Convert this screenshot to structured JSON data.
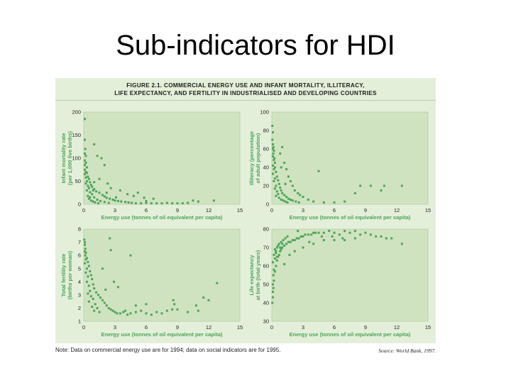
{
  "slide": {
    "title": "Sub-indicators for HDI"
  },
  "figure": {
    "title_line1": "FIGURE 2.1. COMMERCIAL ENERGY USE AND INFANT MORTALITY, ILLITERACY,",
    "title_line2": "LIFE EXPECTANCY, AND FERTILITY IN INDUSTRIALISED AND DEVELOPING COUNTRIES",
    "note": "Note: Data on commercial energy use are for 1994; data on social indicators are for 1995.",
    "source": "Source: World Bank, 1997."
  },
  "colors": {
    "panel_bg": "#e3efd9",
    "plot_bg": "#d0e3c0",
    "point": "#4aa55a",
    "axis_label": "#4aa55a"
  },
  "chart_data": [
    {
      "type": "scatter",
      "xlabel": "Energy use (tonnes of oil equivalent per capita)",
      "ylabel": [
        "Infant mortality rate",
        "(per 1,000 live births)"
      ],
      "xlim": [
        0,
        15
      ],
      "ylim": [
        0,
        200
      ],
      "xticks": [
        "0",
        "3",
        "6",
        "9",
        "12",
        "15"
      ],
      "yticks": [
        "0",
        "50",
        "100",
        "150",
        "200"
      ],
      "points": [
        [
          0.1,
          185
        ],
        [
          0.1,
          140
        ],
        [
          0.15,
          120
        ],
        [
          0.1,
          110
        ],
        [
          0.2,
          105
        ],
        [
          0.1,
          95
        ],
        [
          0.2,
          90
        ],
        [
          0.1,
          85
        ],
        [
          0.3,
          80
        ],
        [
          0.1,
          75
        ],
        [
          0.2,
          70
        ],
        [
          0.3,
          68
        ],
        [
          0.1,
          65
        ],
        [
          0.4,
          60
        ],
        [
          0.2,
          58
        ],
        [
          0.5,
          55
        ],
        [
          0.3,
          50
        ],
        [
          0.6,
          48
        ],
        [
          0.2,
          45
        ],
        [
          0.7,
          42
        ],
        [
          0.4,
          40
        ],
        [
          0.8,
          38
        ],
        [
          0.5,
          35
        ],
        [
          1.0,
          33
        ],
        [
          0.3,
          30
        ],
        [
          1.2,
          28
        ],
        [
          0.6,
          26
        ],
        [
          1.5,
          25
        ],
        [
          0.8,
          22
        ],
        [
          1.8,
          20
        ],
        [
          0.4,
          18
        ],
        [
          2.0,
          17
        ],
        [
          1.0,
          15
        ],
        [
          2.2,
          14
        ],
        [
          0.5,
          12
        ],
        [
          2.5,
          12
        ],
        [
          1.3,
          10
        ],
        [
          2.8,
          10
        ],
        [
          0.7,
          8
        ],
        [
          3.0,
          8
        ],
        [
          1.6,
          7
        ],
        [
          3.3,
          7
        ],
        [
          0.9,
          6
        ],
        [
          3.6,
          6
        ],
        [
          2.0,
          5
        ],
        [
          4.0,
          5
        ],
        [
          1.1,
          4
        ],
        [
          4.3,
          4
        ],
        [
          2.4,
          3
        ],
        [
          4.6,
          3
        ],
        [
          1.4,
          2
        ],
        [
          5.0,
          2
        ],
        [
          5.5,
          2
        ],
        [
          6.0,
          3
        ],
        [
          6.5,
          2
        ],
        [
          7.0,
          2
        ],
        [
          7.5,
          2
        ],
        [
          8.0,
          3
        ],
        [
          8.5,
          2
        ],
        [
          9.0,
          2
        ],
        [
          9.5,
          2
        ],
        [
          10.0,
          3
        ],
        [
          1.0,
          130
        ],
        [
          1.3,
          105
        ],
        [
          1.7,
          100
        ],
        [
          2.0,
          85
        ],
        [
          1.5,
          55
        ],
        [
          2.3,
          45
        ],
        [
          2.6,
          35
        ],
        [
          3.5,
          30
        ],
        [
          4.2,
          22
        ],
        [
          4.8,
          18
        ],
        [
          5.2,
          25
        ],
        [
          6.7,
          12
        ],
        [
          6.0,
          7
        ],
        [
          5.8,
          14
        ],
        [
          10.5,
          8
        ],
        [
          11.0,
          6
        ],
        [
          12.5,
          8
        ],
        [
          3.1,
          15
        ],
        [
          2.2,
          25
        ],
        [
          1.0,
          48
        ],
        [
          0.6,
          15
        ],
        [
          0.9,
          30
        ]
      ]
    },
    {
      "type": "scatter",
      "xlabel": "Energy use (tonnes of oil equivalent per capita)",
      "ylabel": [
        "Illiteracy (percentage",
        "of adult population)"
      ],
      "xlim": [
        0,
        15
      ],
      "ylim": [
        0,
        100
      ],
      "xticks": [
        "0",
        "3",
        "6",
        "9",
        "12",
        "15"
      ],
      "yticks": [
        "0",
        "20",
        "40",
        "60",
        "80",
        "100"
      ],
      "points": [
        [
          0.05,
          85
        ],
        [
          0.1,
          78
        ],
        [
          0.05,
          70
        ],
        [
          0.1,
          65
        ],
        [
          0.15,
          62
        ],
        [
          0.1,
          60
        ],
        [
          0.2,
          58
        ],
        [
          0.15,
          55
        ],
        [
          0.1,
          52
        ],
        [
          0.25,
          50
        ],
        [
          0.2,
          48
        ],
        [
          0.3,
          45
        ],
        [
          0.1,
          42
        ],
        [
          0.3,
          40
        ],
        [
          0.2,
          38
        ],
        [
          0.4,
          35
        ],
        [
          0.1,
          33
        ],
        [
          0.5,
          30
        ],
        [
          0.3,
          28
        ],
        [
          0.6,
          26
        ],
        [
          0.2,
          25
        ],
        [
          0.7,
          22
        ],
        [
          0.4,
          20
        ],
        [
          0.8,
          18
        ],
        [
          0.3,
          17
        ],
        [
          0.9,
          15
        ],
        [
          0.5,
          14
        ],
        [
          1.0,
          12
        ],
        [
          0.6,
          11
        ],
        [
          1.2,
          10
        ],
        [
          0.4,
          9
        ],
        [
          1.4,
          8
        ],
        [
          0.7,
          7
        ],
        [
          1.6,
          6
        ],
        [
          0.9,
          5
        ],
        [
          1.8,
          5
        ],
        [
          1.1,
          4
        ],
        [
          2.0,
          4
        ],
        [
          1.3,
          3
        ],
        [
          2.3,
          3
        ],
        [
          1.5,
          2
        ],
        [
          2.6,
          2
        ],
        [
          1.0,
          62
        ],
        [
          1.2,
          45
        ],
        [
          1.4,
          38
        ],
        [
          1.6,
          30
        ],
        [
          1.8,
          25
        ],
        [
          2.0,
          20
        ],
        [
          2.2,
          15
        ],
        [
          0.8,
          55
        ],
        [
          2.5,
          12
        ],
        [
          3.0,
          8
        ],
        [
          3.5,
          5
        ],
        [
          4.0,
          3
        ],
        [
          4.5,
          36
        ],
        [
          5.0,
          2
        ],
        [
          6.0,
          2
        ],
        [
          7.0,
          3
        ],
        [
          8.0,
          12
        ],
        [
          8.5,
          20
        ],
        [
          9.5,
          20
        ],
        [
          10.5,
          15
        ],
        [
          10.8,
          20
        ],
        [
          12.5,
          20
        ],
        [
          1.3,
          22
        ],
        [
          0.9,
          40
        ],
        [
          2.7,
          10
        ]
      ]
    },
    {
      "type": "scatter",
      "xlabel": "Energy use (tonnes of oil equivalent per capita)",
      "ylabel": [
        "Total fertility rate",
        "(births per woman)"
      ],
      "xlim": [
        0,
        15
      ],
      "ylim": [
        1,
        8
      ],
      "xticks": [
        "0",
        "3",
        "6",
        "9",
        "12",
        "15"
      ],
      "yticks": [
        "1",
        "2",
        "3",
        "4",
        "5",
        "6",
        "7",
        "8"
      ],
      "points": [
        [
          0.05,
          7.2
        ],
        [
          0.1,
          7.0
        ],
        [
          0.1,
          6.8
        ],
        [
          0.15,
          6.5
        ],
        [
          0.1,
          6.3
        ],
        [
          0.2,
          6.2
        ],
        [
          0.15,
          6.0
        ],
        [
          0.3,
          5.8
        ],
        [
          0.2,
          5.7
        ],
        [
          0.4,
          5.5
        ],
        [
          0.1,
          5.4
        ],
        [
          0.5,
          5.2
        ],
        [
          0.3,
          5.0
        ],
        [
          0.6,
          4.8
        ],
        [
          0.2,
          4.7
        ],
        [
          0.7,
          4.5
        ],
        [
          0.4,
          4.4
        ],
        [
          0.8,
          4.2
        ],
        [
          0.3,
          4.0
        ],
        [
          0.9,
          3.8
        ],
        [
          0.5,
          3.7
        ],
        [
          1.0,
          3.5
        ],
        [
          0.6,
          3.3
        ],
        [
          1.2,
          3.2
        ],
        [
          0.4,
          3.1
        ],
        [
          1.4,
          3.0
        ],
        [
          0.7,
          2.9
        ],
        [
          1.6,
          2.8
        ],
        [
          0.9,
          2.7
        ],
        [
          1.8,
          2.6
        ],
        [
          0.5,
          2.5
        ],
        [
          2.0,
          2.4
        ],
        [
          1.1,
          2.3
        ],
        [
          2.2,
          2.2
        ],
        [
          0.8,
          2.1
        ],
        [
          2.4,
          2.0
        ],
        [
          1.3,
          2.0
        ],
        [
          2.6,
          1.9
        ],
        [
          1.0,
          1.8
        ],
        [
          2.8,
          1.8
        ],
        [
          1.5,
          1.7
        ],
        [
          3.0,
          1.7
        ],
        [
          3.2,
          1.6
        ],
        [
          3.5,
          1.6
        ],
        [
          3.8,
          1.7
        ],
        [
          4.0,
          1.8
        ],
        [
          4.2,
          1.5
        ],
        [
          4.5,
          1.6
        ],
        [
          5.0,
          1.7
        ],
        [
          5.5,
          1.8
        ],
        [
          6.0,
          1.6
        ],
        [
          6.5,
          1.5
        ],
        [
          7.0,
          1.7
        ],
        [
          7.5,
          1.6
        ],
        [
          8.0,
          1.8
        ],
        [
          8.5,
          1.9
        ],
        [
          2.5,
          7.3
        ],
        [
          2.6,
          6.4
        ],
        [
          4.5,
          6.0
        ],
        [
          1.8,
          5.0
        ],
        [
          2.9,
          4.0
        ],
        [
          3.3,
          3.6
        ],
        [
          2.1,
          3.4
        ],
        [
          5.0,
          2.2
        ],
        [
          6.0,
          2.3
        ],
        [
          8.7,
          2.3
        ],
        [
          8.6,
          2.6
        ],
        [
          9.0,
          1.9
        ],
        [
          10.0,
          1.7
        ],
        [
          11.0,
          1.8
        ],
        [
          11.5,
          2.8
        ],
        [
          12.0,
          2.6
        ],
        [
          10.8,
          2.2
        ],
        [
          12.8,
          3.9
        ]
      ]
    },
    {
      "type": "scatter",
      "xlabel": "Energy use (tonnes of oil equivalent per capita)",
      "ylabel": [
        "Life expectancy",
        "at birth (total years)"
      ],
      "xlim": [
        0,
        15
      ],
      "ylim": [
        30,
        80
      ],
      "xticks": [
        "0",
        "3",
        "6",
        "9",
        "12",
        "15"
      ],
      "yticks": [
        "30",
        "40",
        "50",
        "60",
        "70",
        "80"
      ],
      "points": [
        [
          0.05,
          40
        ],
        [
          0.1,
          43
        ],
        [
          0.1,
          46
        ],
        [
          0.15,
          48
        ],
        [
          0.1,
          50
        ],
        [
          0.2,
          52
        ],
        [
          0.15,
          55
        ],
        [
          0.3,
          57
        ],
        [
          0.2,
          58
        ],
        [
          0.4,
          60
        ],
        [
          0.1,
          62
        ],
        [
          0.5,
          63
        ],
        [
          0.3,
          64
        ],
        [
          0.6,
          65
        ],
        [
          0.2,
          66
        ],
        [
          0.7,
          66
        ],
        [
          0.4,
          67
        ],
        [
          0.8,
          68
        ],
        [
          0.3,
          69
        ],
        [
          0.9,
          69
        ],
        [
          0.5,
          70
        ],
        [
          1.0,
          70
        ],
        [
          0.6,
          71
        ],
        [
          1.2,
          71
        ],
        [
          0.4,
          68
        ],
        [
          1.4,
          72
        ],
        [
          0.7,
          72
        ],
        [
          1.6,
          73
        ],
        [
          0.9,
          73
        ],
        [
          1.8,
          73
        ],
        [
          0.5,
          65
        ],
        [
          2.0,
          74
        ],
        [
          1.1,
          74
        ],
        [
          2.2,
          74
        ],
        [
          0.8,
          70
        ],
        [
          2.4,
          75
        ],
        [
          1.3,
          75
        ],
        [
          2.6,
          75
        ],
        [
          1.0,
          72
        ],
        [
          2.8,
          76
        ],
        [
          1.5,
          76
        ],
        [
          3.0,
          76
        ],
        [
          3.2,
          77
        ],
        [
          3.5,
          77
        ],
        [
          3.8,
          77
        ],
        [
          4.0,
          78
        ],
        [
          4.2,
          78
        ],
        [
          4.5,
          78
        ],
        [
          5.0,
          78
        ],
        [
          5.5,
          79
        ],
        [
          6.0,
          78
        ],
        [
          6.5,
          77
        ],
        [
          7.0,
          79
        ],
        [
          7.5,
          78
        ],
        [
          8.0,
          79
        ],
        [
          8.5,
          77
        ],
        [
          9.0,
          78
        ],
        [
          9.5,
          77
        ],
        [
          10.0,
          76
        ],
        [
          10.5,
          76
        ],
        [
          11.0,
          75
        ],
        [
          11.5,
          75
        ],
        [
          12.5,
          72
        ],
        [
          3.0,
          70
        ],
        [
          4.0,
          72
        ],
        [
          5.0,
          74
        ],
        [
          6.0,
          74
        ],
        [
          7.0,
          74
        ],
        [
          8.0,
          75
        ],
        [
          2.2,
          68
        ],
        [
          1.7,
          66
        ],
        [
          2.5,
          79
        ],
        [
          4.8,
          76
        ],
        [
          5.8,
          76
        ],
        [
          6.8,
          75
        ],
        [
          3.6,
          73
        ],
        [
          1.2,
          61
        ]
      ]
    }
  ]
}
